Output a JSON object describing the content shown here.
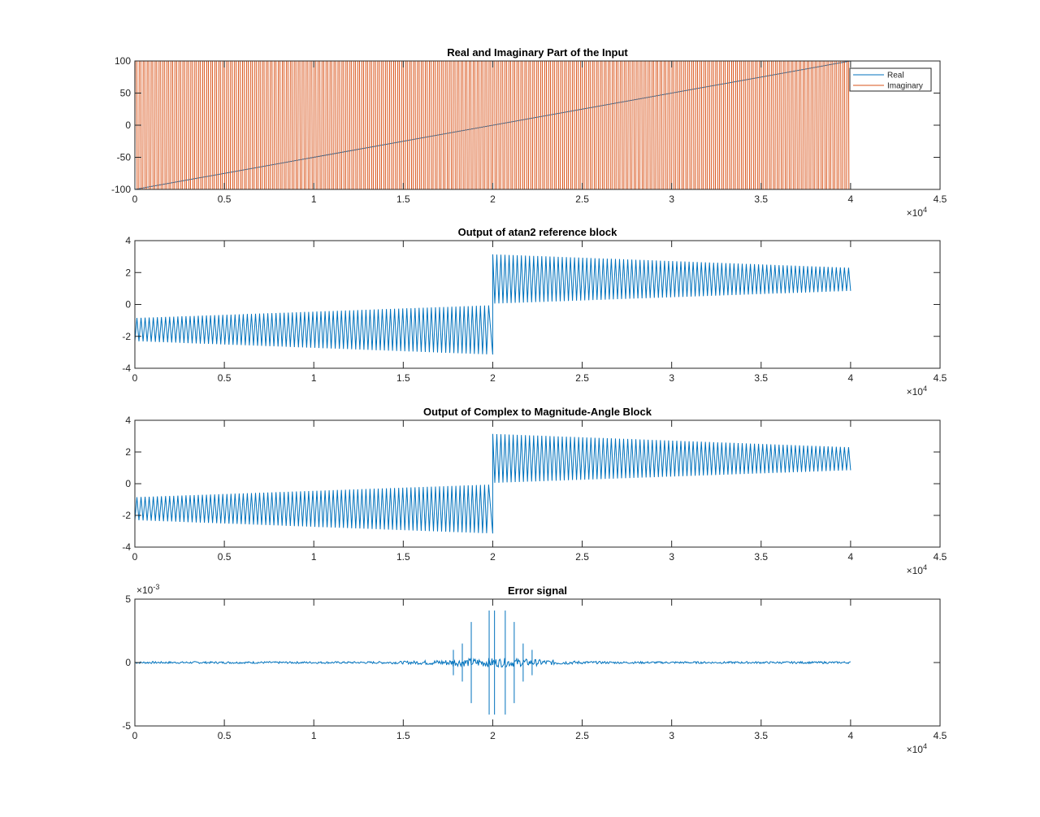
{
  "colors": {
    "real": "#0072BD",
    "imaginary": "#D95319",
    "axis": "#262626",
    "background": "#ffffff"
  },
  "chart_data": [
    {
      "type": "line",
      "title": "Real and Imaginary Part of the Input",
      "xlim": [
        0,
        45000
      ],
      "ylim": [
        -100,
        100
      ],
      "x_ticks": [
        0,
        5000,
        10000,
        15000,
        20000,
        25000,
        30000,
        35000,
        40000,
        45000
      ],
      "x_tick_labels": [
        "0",
        "0.5",
        "1",
        "1.5",
        "2",
        "2.5",
        "3",
        "3.5",
        "4",
        "4.5"
      ],
      "y_ticks": [
        -100,
        -50,
        0,
        50,
        100
      ],
      "y_tick_labels": [
        "-100",
        "-50",
        "0",
        "50",
        "100"
      ],
      "x_exponent_base": "×10",
      "x_exponent_power": "4",
      "legend": {
        "location": "top-right",
        "entries": [
          "Real",
          "Imaginary"
        ]
      },
      "series": [
        {
          "name": "Real",
          "description": "linear ramp from -100 to 100",
          "x": [
            0,
            40000
          ],
          "y": [
            -100,
            100
          ]
        },
        {
          "name": "Imaginary",
          "description": "square-like oscillation between -100 and 100",
          "x_range": [
            0,
            40000
          ],
          "amplitude": 100,
          "cycles": 180
        }
      ]
    },
    {
      "type": "line",
      "title": "Output of atan2 reference block",
      "xlim": [
        0,
        45000
      ],
      "ylim": [
        -4,
        4
      ],
      "x_ticks": [
        0,
        5000,
        10000,
        15000,
        20000,
        25000,
        30000,
        35000,
        40000,
        45000
      ],
      "x_tick_labels": [
        "0",
        "0.5",
        "1",
        "1.5",
        "2",
        "2.5",
        "3",
        "3.5",
        "4",
        "4.5"
      ],
      "y_ticks": [
        -4,
        -2,
        0,
        2,
        4
      ],
      "y_tick_labels": [
        "-4",
        "-2",
        "0",
        "2",
        "4"
      ],
      "x_exponent_base": "×10",
      "x_exponent_power": "4",
      "series": [
        {
          "name": "atan2",
          "x_range": [
            0,
            40000
          ],
          "cycles": 175,
          "discontinuity_x": 20000,
          "envelope_before": {
            "upper": [
              -0.85,
              -0.05
            ],
            "lower": [
              -2.3,
              -3.14
            ]
          },
          "envelope_after": {
            "upper": [
              3.14,
              2.3
            ],
            "lower": [
              0.05,
              0.85
            ]
          }
        }
      ]
    },
    {
      "type": "line",
      "title": "Output of Complex to Magnitude-Angle Block",
      "xlim": [
        0,
        45000
      ],
      "ylim": [
        -4,
        4
      ],
      "x_ticks": [
        0,
        5000,
        10000,
        15000,
        20000,
        25000,
        30000,
        35000,
        40000,
        45000
      ],
      "x_tick_labels": [
        "0",
        "0.5",
        "1",
        "1.5",
        "2",
        "2.5",
        "3",
        "3.5",
        "4",
        "4.5"
      ],
      "y_ticks": [
        -4,
        -2,
        0,
        2,
        4
      ],
      "y_tick_labels": [
        "-4",
        "-2",
        "0",
        "2",
        "4"
      ],
      "x_exponent_base": "×10",
      "x_exponent_power": "4",
      "series": [
        {
          "name": "angle",
          "x_range": [
            0,
            40000
          ],
          "cycles": 175,
          "discontinuity_x": 20000,
          "envelope_before": {
            "upper": [
              -0.85,
              -0.05
            ],
            "lower": [
              -2.3,
              -3.14
            ]
          },
          "envelope_after": {
            "upper": [
              3.14,
              2.3
            ],
            "lower": [
              0.05,
              0.85
            ]
          }
        }
      ]
    },
    {
      "type": "line",
      "title": "Error signal",
      "xlim": [
        0,
        45000
      ],
      "ylim": [
        -0.005,
        0.005
      ],
      "x_ticks": [
        0,
        5000,
        10000,
        15000,
        20000,
        25000,
        30000,
        35000,
        40000,
        45000
      ],
      "x_tick_labels": [
        "0",
        "0.5",
        "1",
        "1.5",
        "2",
        "2.5",
        "3",
        "3.5",
        "4",
        "4.5"
      ],
      "y_ticks": [
        -0.005,
        0,
        0.005
      ],
      "y_tick_labels": [
        "-5",
        "0",
        "5"
      ],
      "x_exponent_base": "×10",
      "x_exponent_power": "4",
      "y_exponent_base": "×10",
      "y_exponent_power": "-3",
      "series": [
        {
          "name": "error",
          "x_range": [
            0,
            40000
          ],
          "noise_amplitude": 0.0002,
          "spikes": [
            {
              "x": 18800,
              "amplitude": 0.0032
            },
            {
              "x": 19800,
              "amplitude": 0.0041
            },
            {
              "x": 20100,
              "amplitude": 0.0041
            },
            {
              "x": 20700,
              "amplitude": 0.0041
            },
            {
              "x": 21200,
              "amplitude": 0.0032
            },
            {
              "x": 18300,
              "amplitude": 0.0015
            },
            {
              "x": 21700,
              "amplitude": 0.0015
            },
            {
              "x": 17800,
              "amplitude": 0.001
            },
            {
              "x": 22200,
              "amplitude": 0.001
            }
          ]
        }
      ]
    }
  ]
}
